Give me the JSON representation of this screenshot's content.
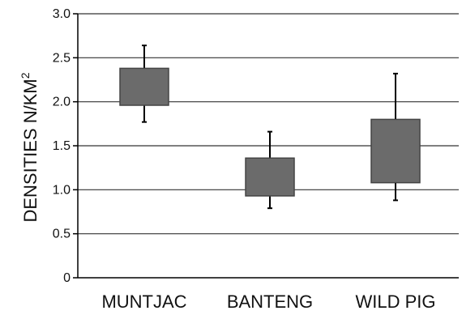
{
  "chart_data": {
    "type": "box",
    "categories": [
      "MUNTJAC",
      "BANTENG",
      "WILD PIG"
    ],
    "ylabel": "DENSITIES N/KM",
    "ylabel_superscript": "2",
    "xlabel": "",
    "ylim": [
      0,
      3.0
    ],
    "yticks": [
      "0",
      "0.5",
      "1.0",
      "1.5",
      "2.0",
      "2.5",
      "3.0"
    ],
    "grid": true,
    "series": [
      {
        "values": [
          {
            "category": "MUNTJAC",
            "whisker_low": 1.77,
            "q1": 1.96,
            "q3": 2.38,
            "whisker_high": 2.64
          },
          {
            "category": "BANTENG",
            "whisker_low": 0.79,
            "q1": 0.93,
            "q3": 1.36,
            "whisker_high": 1.66
          },
          {
            "category": "WILD PIG",
            "whisker_low": 0.88,
            "q1": 1.08,
            "q3": 1.8,
            "whisker_high": 2.32
          }
        ]
      }
    ],
    "colors": {
      "box_fill": "#6b6b6b",
      "box_stroke": "#444444",
      "whisker": "#000000",
      "grid": "#333333",
      "axis": "#000000"
    }
  }
}
